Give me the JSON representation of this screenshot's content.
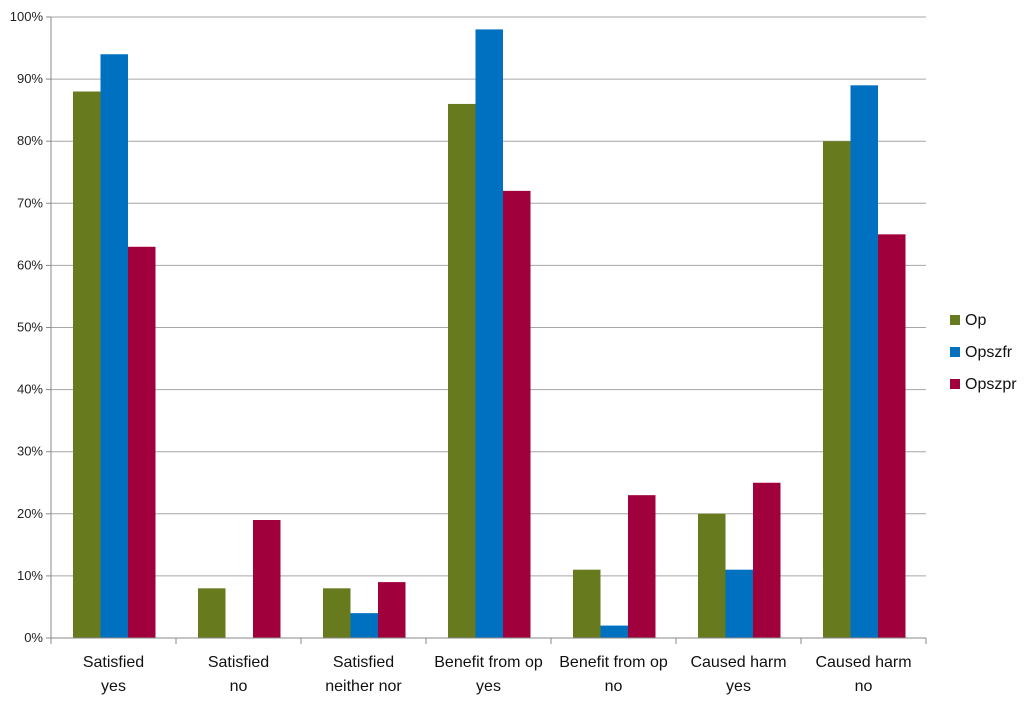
{
  "chart_data": {
    "type": "bar",
    "categories": [
      [
        "Satisfied",
        "yes"
      ],
      [
        "Satisfied",
        "no"
      ],
      [
        "Satisfied",
        "neither nor"
      ],
      [
        "Benefit from op",
        "yes"
      ],
      [
        "Benefit from op",
        "no"
      ],
      [
        "Caused harm",
        "yes"
      ],
      [
        "Caused harm",
        "no"
      ]
    ],
    "series": [
      {
        "name": "Op",
        "color": "#687A1E",
        "values": [
          88,
          8,
          8,
          86,
          11,
          20,
          80
        ]
      },
      {
        "name": "Opszfr",
        "color": "#0070C0",
        "values": [
          94,
          0,
          4,
          98,
          2,
          11,
          89
        ]
      },
      {
        "name": "Opszpr",
        "color": "#A0003C",
        "values": [
          63,
          19,
          9,
          72,
          23,
          25,
          65
        ]
      }
    ],
    "yticks": [
      "0%",
      "10%",
      "20%",
      "30%",
      "40%",
      "50%",
      "60%",
      "70%",
      "80%",
      "90%",
      "100%"
    ],
    "ylim": [
      0,
      100
    ],
    "grid": true,
    "legend": "right",
    "gridline_color": "#A6A6A6"
  }
}
